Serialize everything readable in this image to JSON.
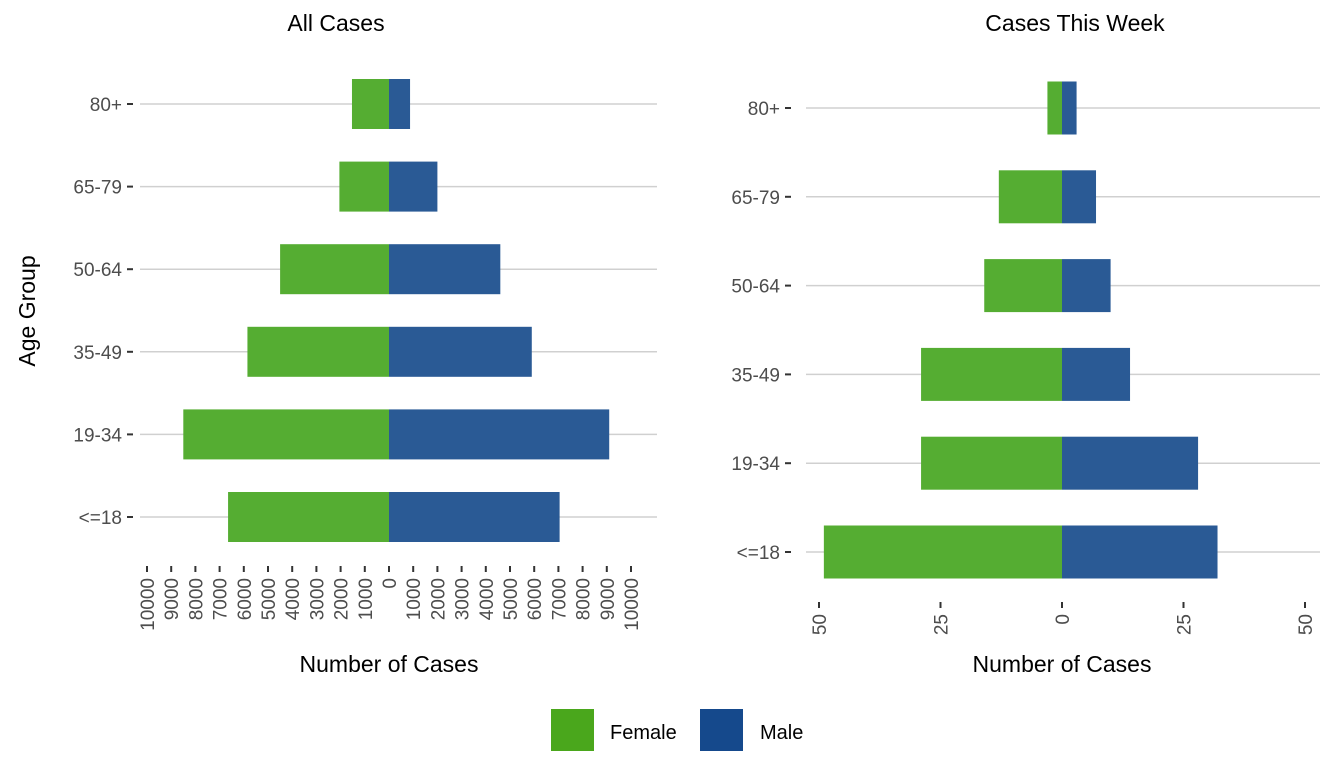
{
  "chart_data": [
    {
      "type": "bar",
      "orientation": "horizontal-diverging",
      "title": "All Cases",
      "xlabel": "Number of Cases",
      "ylabel": "Age Group",
      "categories": [
        "<=18",
        "19-34",
        "35-49",
        "50-64",
        "65-79",
        "80+"
      ],
      "series": [
        {
          "name": "Female",
          "values": [
            6650,
            8500,
            5850,
            4500,
            2050,
            1530
          ]
        },
        {
          "name": "Male",
          "values": [
            7050,
            9100,
            5900,
            4600,
            2000,
            870
          ]
        }
      ],
      "xlim": [
        -10000,
        10000
      ],
      "xticks": [
        -10000,
        -9000,
        -8000,
        -7000,
        -6000,
        -5000,
        -4000,
        -3000,
        -2000,
        -1000,
        0,
        1000,
        2000,
        3000,
        4000,
        5000,
        6000,
        7000,
        8000,
        9000,
        10000
      ],
      "xtick_labels": [
        "10000",
        "9000",
        "8000",
        "7000",
        "6000",
        "5000",
        "4000",
        "3000",
        "2000",
        "1000",
        "0",
        "1000",
        "2000",
        "3000",
        "4000",
        "5000",
        "6000",
        "7000",
        "8000",
        "9000",
        "10000"
      ],
      "grid": "horizontal"
    },
    {
      "type": "bar",
      "orientation": "horizontal-diverging",
      "title": "Cases This Week",
      "xlabel": "Number of Cases",
      "ylabel": "",
      "categories": [
        "<=18",
        "19-34",
        "35-49",
        "50-64",
        "65-79",
        "80+"
      ],
      "series": [
        {
          "name": "Female",
          "values": [
            49,
            29,
            29,
            16,
            13,
            3
          ]
        },
        {
          "name": "Male",
          "values": [
            32,
            28,
            14,
            10,
            7,
            3
          ]
        }
      ],
      "xlim": [
        -50,
        50
      ],
      "xticks": [
        -50,
        -25,
        0,
        25,
        50
      ],
      "xtick_labels": [
        "50",
        "25",
        "0",
        "25",
        "50"
      ],
      "grid": "horizontal"
    }
  ],
  "legend": {
    "placement": "bottom",
    "items": [
      {
        "label": "Female",
        "color": "#4aa71c"
      },
      {
        "label": "Male",
        "color": "#15498c"
      }
    ]
  },
  "colors": {
    "female_bar": "#55ad32",
    "male_bar": "#2a5a95",
    "grid": "#d0d0d0",
    "text": "#4d4d4d"
  }
}
